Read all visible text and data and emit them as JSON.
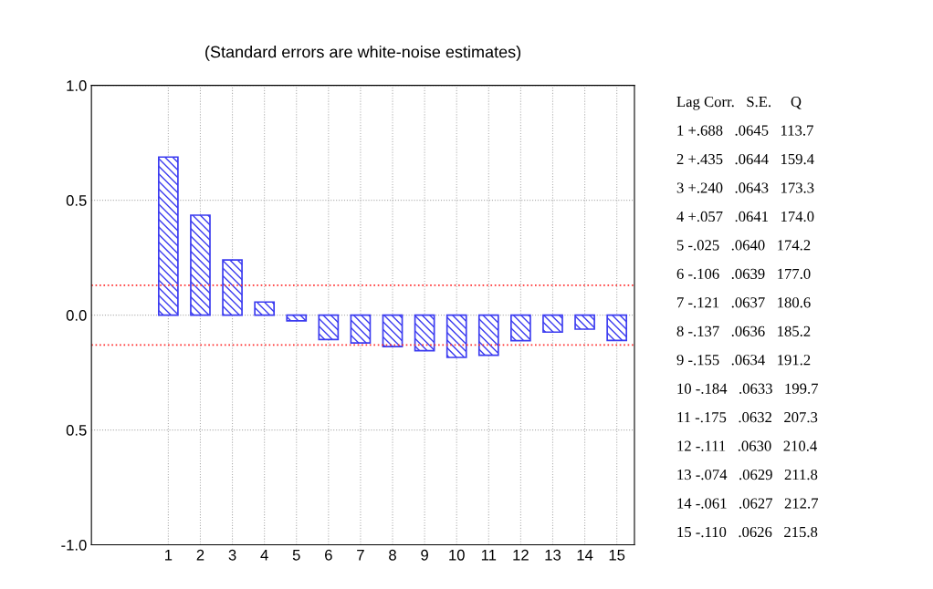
{
  "chart_data": {
    "type": "bar",
    "title": "(Standard errors are white-noise estimates)",
    "categories": [
      "1",
      "2",
      "3",
      "4",
      "5",
      "6",
      "7",
      "8",
      "9",
      "10",
      "11",
      "12",
      "13",
      "14",
      "15"
    ],
    "values": [
      0.688,
      0.435,
      0.24,
      0.057,
      -0.025,
      -0.106,
      -0.121,
      -0.137,
      -0.155,
      -0.184,
      -0.175,
      -0.111,
      -0.074,
      -0.061,
      -0.11
    ],
    "color": "#3b3bf0",
    "ylim": [
      -1.0,
      1.0
    ],
    "yticks": [
      {
        "value": -1.0,
        "label": "-1.0"
      },
      {
        "value": -0.5,
        "label": "0.5"
      },
      {
        "value": 0.0,
        "label": "0.0"
      },
      {
        "value": 0.5,
        "label": "0.5"
      },
      {
        "value": 1.0,
        "label": "1.0"
      }
    ],
    "grid": true,
    "ref_lines": [
      {
        "axis": "y",
        "value": 0.13,
        "color": "#ff3030",
        "line_style": "dotted"
      },
      {
        "axis": "y",
        "value": -0.13,
        "color": "#ff3030",
        "line_style": "dotted"
      }
    ],
    "annotations": [
      "Lag Corr.   S.E.     Q",
      "1 +.688   .0645   113.7",
      "2 +.435   .0644   159.4",
      "3 +.240   .0643   173.3",
      "4 +.057   .0641   174.0",
      "5 -.025   .0640   174.2",
      "6 -.106   .0639   177.0",
      "7 -.121   .0637   180.6",
      "8 -.137   .0636   185.2",
      "9 -.155   .0634   191.2",
      "10 -.184   .0633   199.7",
      "11 -.175   .0632   207.3",
      "12 -.111   .0630   210.4",
      "13 -.074   .0629   211.8",
      "14 -.061   .0627   212.7",
      "15 -.110   .0626   215.8"
    ]
  }
}
